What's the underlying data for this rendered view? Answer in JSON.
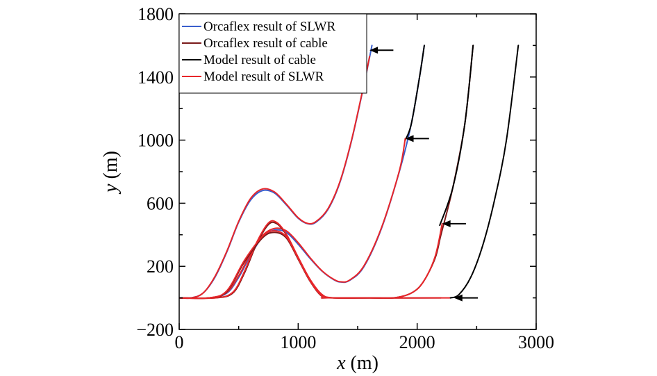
{
  "chart_data": {
    "type": "line",
    "title": "",
    "xlabel": {
      "var": "x",
      "unit": " (m)"
    },
    "ylabel": {
      "var": "y",
      "unit": " (m)"
    },
    "xlim": [
      0,
      3000
    ],
    "ylim": [
      -200,
      1800
    ],
    "xticks": [
      0,
      1000,
      2000,
      3000
    ],
    "xtick_labels": [
      "0",
      "1000",
      "2000",
      "3000"
    ],
    "yticks": [
      -200,
      200,
      600,
      1000,
      1400,
      1800
    ],
    "ytick_labels": [
      "−200",
      "200",
      "600",
      "1000",
      "1400",
      "1800"
    ],
    "grid": false,
    "legend_position": "top-left",
    "series": [
      {
        "name": "Orcaflex result of SLWR",
        "color": "#3a5fcd"
      },
      {
        "name": "Orcaflex result of cable",
        "color": "#7a1a1a"
      },
      {
        "name": "Model result of cable",
        "color": "#000000"
      },
      {
        "name": "Model result of SLWR",
        "color": "#e8262a"
      }
    ],
    "curves": [
      {
        "id": "A",
        "layers": [
          {
            "color": "#3a5fcd",
            "points": [
              [
                0,
                0
              ],
              [
                100,
                0
              ],
              [
                200,
                30
              ],
              [
                300,
                130
              ],
              [
                400,
                290
              ],
              [
                500,
                480
              ],
              [
                600,
                620
              ],
              [
                700,
                680
              ],
              [
                800,
                665
              ],
              [
                900,
                590
              ],
              [
                1000,
                505
              ],
              [
                1080,
                470
              ],
              [
                1150,
                480
              ],
              [
                1250,
                560
              ],
              [
                1350,
                730
              ],
              [
                1450,
                1000
              ],
              [
                1550,
                1340
              ],
              [
                1620,
                1600
              ]
            ]
          },
          {
            "color": "#e8262a",
            "points": [
              [
                0,
                0
              ],
              [
                100,
                0
              ],
              [
                200,
                30
              ],
              [
                300,
                135
              ],
              [
                400,
                295
              ],
              [
                500,
                485
              ],
              [
                600,
                630
              ],
              [
                700,
                690
              ],
              [
                800,
                672
              ],
              [
                900,
                595
              ],
              [
                1000,
                508
              ],
              [
                1080,
                472
              ],
              [
                1150,
                484
              ],
              [
                1250,
                565
              ],
              [
                1350,
                735
              ],
              [
                1450,
                1005
              ],
              [
                1550,
                1345
              ],
              [
                1600,
                1530
              ]
            ]
          }
        ]
      },
      {
        "id": "B",
        "layers": [
          {
            "color": "#3a5fcd",
            "points": [
              [
                0,
                0
              ],
              [
                250,
                0
              ],
              [
                400,
                30
              ],
              [
                500,
                130
              ],
              [
                600,
                270
              ],
              [
                700,
                385
              ],
              [
                800,
                430
              ],
              [
                900,
                415
              ],
              [
                1000,
                340
              ],
              [
                1100,
                250
              ],
              [
                1200,
                170
              ],
              [
                1300,
                115
              ],
              [
                1360,
                100
              ],
              [
                1430,
                110
              ],
              [
                1550,
                195
              ],
              [
                1700,
                440
              ],
              [
                1850,
                800
              ],
              [
                1950,
                1100
              ],
              [
                2020,
                1400
              ],
              [
                2060,
                1600
              ]
            ]
          },
          {
            "color": "#000000",
            "points": [
              [
                1900,
                1000
              ],
              [
                1950,
                1100
              ],
              [
                2020,
                1400
              ],
              [
                2060,
                1600
              ]
            ]
          },
          {
            "color": "#e8262a",
            "points": [
              [
                0,
                0
              ],
              [
                250,
                0
              ],
              [
                400,
                35
              ],
              [
                500,
                140
              ],
              [
                600,
                280
              ],
              [
                700,
                395
              ],
              [
                800,
                440
              ],
              [
                900,
                425
              ],
              [
                1000,
                350
              ],
              [
                1100,
                255
              ],
              [
                1200,
                172
              ],
              [
                1300,
                117
              ],
              [
                1360,
                102
              ],
              [
                1430,
                112
              ],
              [
                1550,
                200
              ],
              [
                1700,
                445
              ],
              [
                1850,
                805
              ],
              [
                1900,
                1010
              ]
            ]
          }
        ]
      },
      {
        "id": "C",
        "layers": [
          {
            "color": "#7a1a1a",
            "points": [
              [
                0,
                0
              ],
              [
                300,
                0
              ],
              [
                450,
                30
              ],
              [
                550,
                160
              ],
              [
                650,
                340
              ],
              [
                750,
                465
              ],
              [
                820,
                470
              ],
              [
                900,
                400
              ],
              [
                1000,
                255
              ],
              [
                1100,
                115
              ],
              [
                1200,
                20
              ],
              [
                1300,
                0
              ],
              [
                1600,
                0
              ],
              [
                1800,
                0
              ],
              [
                1950,
                30
              ],
              [
                2050,
                100
              ],
              [
                2150,
                250
              ],
              [
                2200,
                400
              ],
              [
                2300,
                700
              ],
              [
                2400,
                1100
              ],
              [
                2470,
                1600
              ]
            ]
          },
          {
            "color": "#000000",
            "points": [
              [
                2190,
                460
              ],
              [
                2300,
                700
              ],
              [
                2400,
                1100
              ],
              [
                2470,
                1600
              ]
            ]
          },
          {
            "color": "#e8262a",
            "points": [
              [
                0,
                0
              ],
              [
                300,
                0
              ],
              [
                450,
                35
              ],
              [
                550,
                170
              ],
              [
                650,
                350
              ],
              [
                750,
                475
              ],
              [
                820,
                478
              ],
              [
                900,
                405
              ],
              [
                1000,
                258
              ],
              [
                1100,
                117
              ],
              [
                1200,
                22
              ],
              [
                1300,
                0
              ],
              [
                1600,
                0
              ],
              [
                1800,
                0
              ],
              [
                1950,
                30
              ],
              [
                2050,
                100
              ],
              [
                2150,
                260
              ],
              [
                2210,
                470
              ]
            ]
          }
        ]
      },
      {
        "id": "D",
        "layers": [
          {
            "color": "#7a1a1a",
            "points": [
              [
                0,
                0
              ],
              [
                250,
                0
              ],
              [
                400,
                40
              ],
              [
                550,
                230
              ],
              [
                700,
                380
              ],
              [
                800,
                415
              ],
              [
                900,
                380
              ],
              [
                1000,
                245
              ],
              [
                1100,
                105
              ],
              [
                1200,
                10
              ],
              [
                1300,
                0
              ],
              [
                2200,
                0
              ]
            ]
          },
          {
            "color": "#e8262a",
            "points": [
              [
                0,
                0
              ],
              [
                250,
                0
              ],
              [
                400,
                45
              ],
              [
                550,
                240
              ],
              [
                700,
                390
              ],
              [
                800,
                425
              ],
              [
                900,
                388
              ],
              [
                1000,
                250
              ],
              [
                1100,
                108
              ],
              [
                1200,
                12
              ],
              [
                1300,
                0
              ],
              [
                2280,
                0
              ]
            ]
          },
          {
            "color": "#000000",
            "points": [
              [
                2280,
                0
              ],
              [
                2350,
                20
              ],
              [
                2450,
                130
              ],
              [
                2550,
                330
              ],
              [
                2650,
                620
              ],
              [
                2750,
                1000
              ],
              [
                2850,
                1600
              ]
            ]
          }
        ]
      }
    ],
    "annotations": [
      {
        "type": "arrow",
        "tip": [
          1600,
          1570
        ],
        "tail": [
          1800,
          1570
        ]
      },
      {
        "type": "arrow",
        "tip": [
          1900,
          1010
        ],
        "tail": [
          2100,
          1010
        ]
      },
      {
        "type": "arrow",
        "tip": [
          2210,
          470
        ],
        "tail": [
          2410,
          470
        ]
      },
      {
        "type": "arrow",
        "tip": [
          2310,
          0
        ],
        "tail": [
          2510,
          0
        ]
      }
    ]
  }
}
